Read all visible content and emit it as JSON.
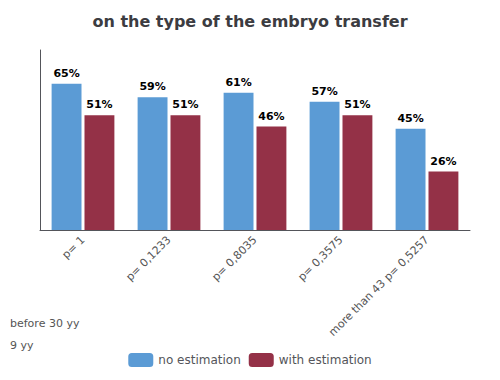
{
  "chart_data": {
    "type": "bar",
    "title": "on the type of the embryo transfer",
    "categories": [
      "p= 1",
      "p= 0,1233",
      "p= 0,8035",
      "p= 0,3575",
      "more than 43 p= 0,5257"
    ],
    "series": [
      {
        "name": "no estimation",
        "color": "#5b9bd5",
        "values": [
          65,
          59,
          61,
          57,
          45
        ],
        "value_labels": [
          "65%",
          "59%",
          "61%",
          "57%",
          "45%"
        ]
      },
      {
        "name": "with estimation",
        "color": "#943147",
        "values": [
          51,
          51,
          46,
          51,
          26
        ],
        "value_labels": [
          "51%",
          "51%",
          "46%",
          "51%",
          "26%"
        ]
      }
    ],
    "ylim": [
      0,
      80
    ],
    "annotations": [
      "before 30 yy",
      "9 yy"
    ],
    "grid": false,
    "legend": "bottom",
    "data_labels": true,
    "tick_labels": "x"
  }
}
